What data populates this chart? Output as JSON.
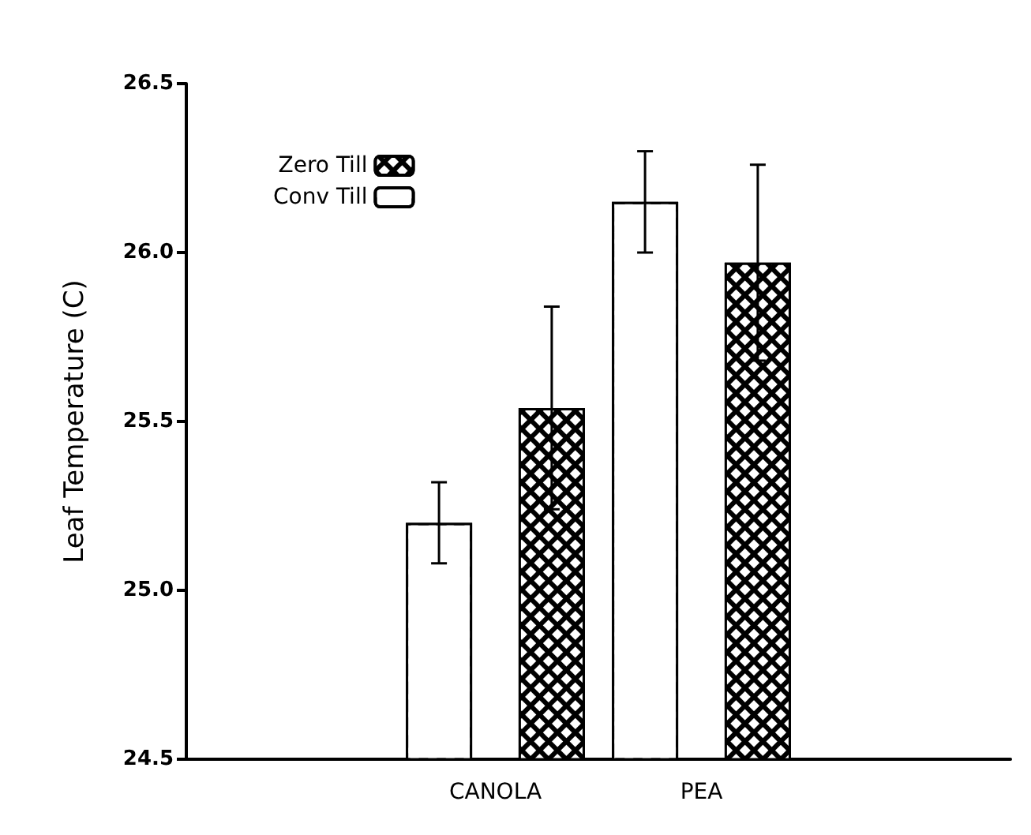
{
  "chart_data": {
    "type": "bar",
    "ylabel": "Leaf Temperature (C)",
    "categories": [
      null,
      "CANOLA",
      "PEA",
      null
    ],
    "series": [
      {
        "name": "Conv Till",
        "color": "#ffffff",
        "values": [
          null,
          25.2,
          26.15,
          null
        ],
        "errors": [
          null,
          0.12,
          0.15,
          null
        ]
      },
      {
        "name": "Zero Till",
        "color": "#000000",
        "values": [
          null,
          25.54,
          25.97,
          null
        ],
        "errors": [
          null,
          0.3,
          0.29,
          null
        ]
      }
    ],
    "ylim": [
      24.5,
      26.5
    ],
    "yticks": [
      {
        "value": 24.5,
        "label": "24.5"
      },
      {
        "value": 25,
        "label": "25.0"
      },
      {
        "value": 25.5,
        "label": "25.5"
      },
      {
        "value": 26,
        "label": "26.0"
      },
      {
        "value": 26.5,
        "label": "26.5"
      }
    ],
    "grid": false,
    "legend": "top left"
  }
}
